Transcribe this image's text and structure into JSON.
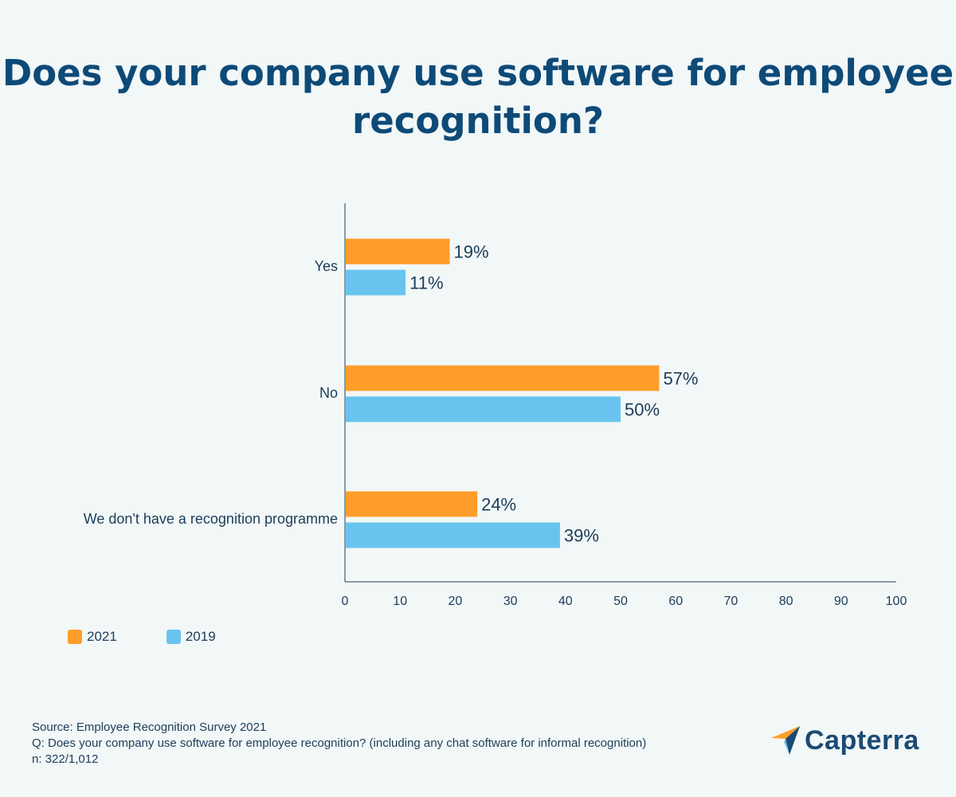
{
  "title": "Does your company use software for employee recognition?",
  "chart_data": {
    "type": "bar",
    "orientation": "horizontal",
    "categories": [
      "Yes",
      "No",
      "We don't have a recognition programme"
    ],
    "series": [
      {
        "name": "2021",
        "values": [
          19,
          57,
          24
        ],
        "labels": [
          "19%",
          "57%",
          "24%"
        ],
        "color": "#ff9d2a"
      },
      {
        "name": "2019",
        "values": [
          11,
          50,
          39
        ],
        "labels": [
          "11%",
          "50%",
          "39%"
        ],
        "color": "#68c4ee"
      }
    ],
    "xlim": [
      0,
      100
    ],
    "xticks": [
      0,
      10,
      20,
      30,
      40,
      50,
      60,
      70,
      80,
      90,
      100
    ],
    "grid": false,
    "legend_position": "bottom-left"
  },
  "footer": {
    "source": "Source: Employee Recognition Survey 2021",
    "question": "Q: Does your company use software for employee recognition? (including any chat software for informal recognition)",
    "sample": "n: 322/1,012"
  },
  "logo": {
    "text": "Capterra",
    "icon": "capterra-logo-icon"
  },
  "colors": {
    "title": "#0d4a78",
    "background": "#f2f7f7",
    "axis": "#1c3d5a"
  }
}
